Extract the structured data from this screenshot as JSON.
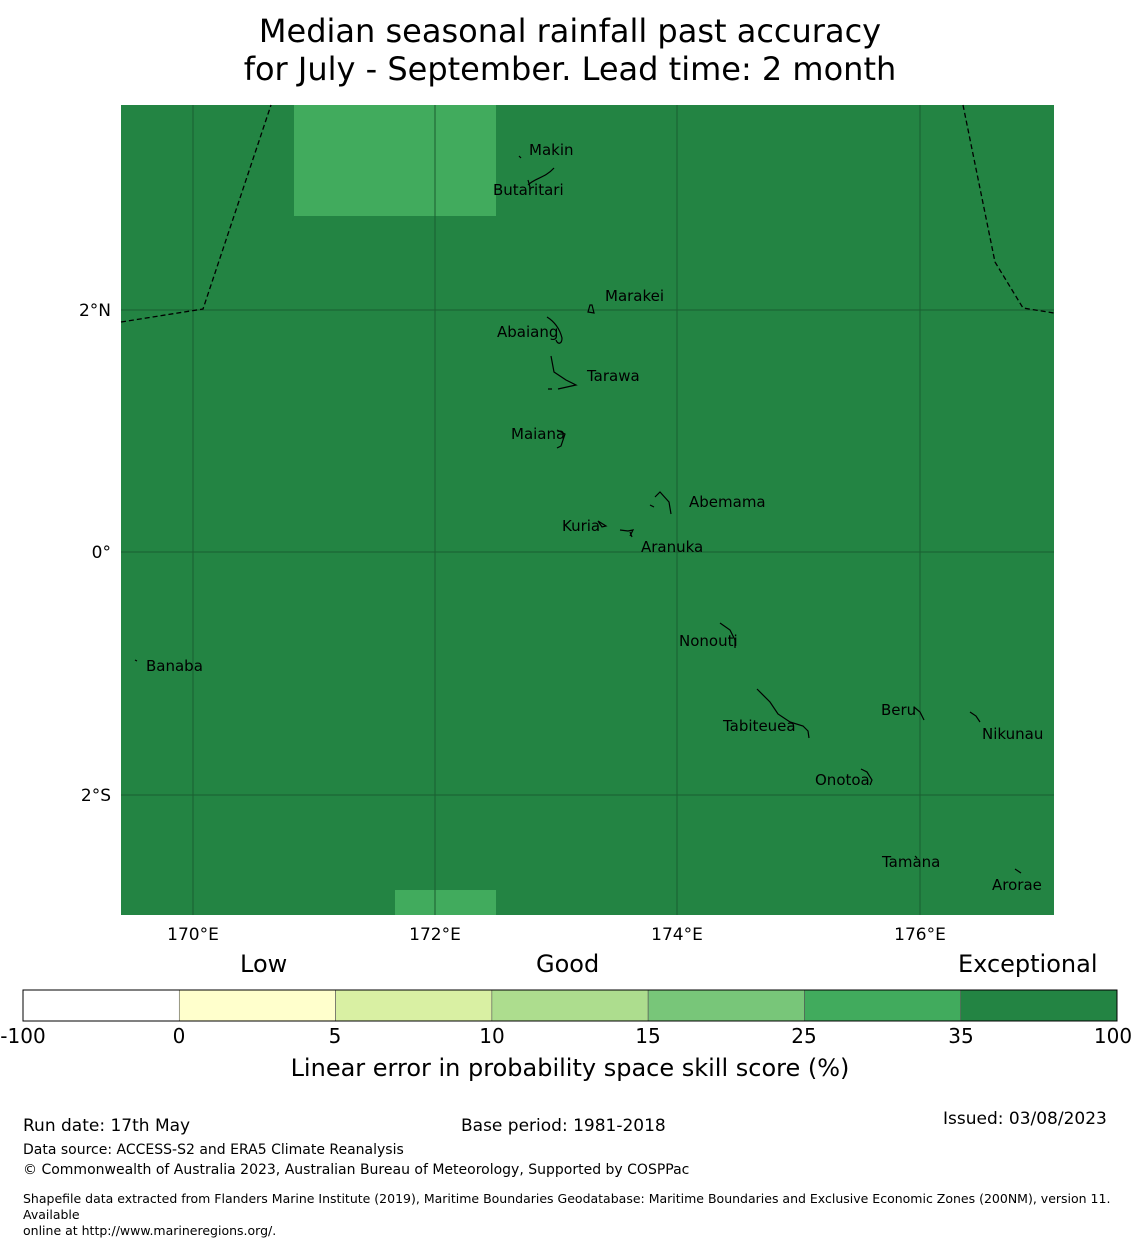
{
  "title_line1": "Median seasonal rainfall past accuracy",
  "title_line2": "for July - September. Lead time: 2 month",
  "map": {
    "lon_ticks": [
      "170°E",
      "172°E",
      "174°E",
      "176°E"
    ],
    "lat_ticks": [
      "2°N",
      "0°",
      "2°S"
    ],
    "colors": {
      "background_skill": "#238443",
      "patch_skill": "#41ab5d",
      "grid": "#1a5e30"
    },
    "islands": [
      {
        "name": "Makin"
      },
      {
        "name": "Butaritari"
      },
      {
        "name": "Marakei"
      },
      {
        "name": "Abaiang"
      },
      {
        "name": "Tarawa"
      },
      {
        "name": "Maiana"
      },
      {
        "name": "Abemama"
      },
      {
        "name": "Kuria"
      },
      {
        "name": "Aranuka"
      },
      {
        "name": "Nonouti"
      },
      {
        "name": "Banaba"
      },
      {
        "name": "Beru"
      },
      {
        "name": "Tabiteuea"
      },
      {
        "name": "Nikunau"
      },
      {
        "name": "Onotoa"
      },
      {
        "name": "Tamana"
      },
      {
        "name": "Arorae"
      }
    ]
  },
  "colorbar": {
    "categories": {
      "low": "Low",
      "good": "Good",
      "exceptional": "Exceptional"
    },
    "ticks": [
      "-100",
      "0",
      "5",
      "10",
      "15",
      "25",
      "35",
      "100"
    ],
    "segment_colors": [
      "#ffffff",
      "#ffffcc",
      "#d9f0a3",
      "#addd8e",
      "#78c679",
      "#41ab5d",
      "#238443"
    ],
    "label": "Linear error in probability space skill score (%)"
  },
  "footer": {
    "run_date": "Run date: 17th May",
    "base_period": "Base period: 1981-2018",
    "issued": "Issued: 03/08/2023",
    "data_source": "Data source: ACCESS-S2 and ERA5 Climate Reanalysis",
    "copyright": "© Commonwealth of Australia 2023, Australian Bureau of Meteorology, Supported by COSPPac",
    "shapefile_line1": "Shapefile data extracted from Flanders Marine Institute (2019), Maritime Boundaries Geodatabase: Maritime Boundaries and Exclusive Economic Zones (200NM), version 11. Available",
    "shapefile_line2": "online at http://www.marineregions.org/."
  }
}
